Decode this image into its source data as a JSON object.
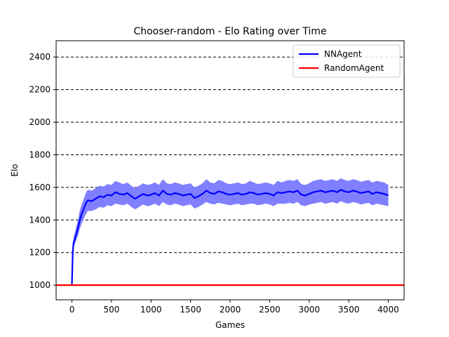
{
  "chart_data": {
    "type": "line",
    "title": "Chooser-random - Elo Rating over Time",
    "xlabel": "Games",
    "ylabel": "Elo",
    "xlim": [
      -200,
      4200
    ],
    "ylim": [
      910,
      2500
    ],
    "xticks": [
      0,
      500,
      1000,
      1500,
      2000,
      2500,
      3000,
      3500,
      4000
    ],
    "yticks": [
      1000,
      1200,
      1400,
      1600,
      1800,
      2000,
      2200,
      2400
    ],
    "grid": "horizontal dashed",
    "legend": "top-right",
    "series": [
      {
        "name": "NNAgent",
        "color": "#0000ff",
        "band_color": "#8080ff",
        "x": [
          0,
          10,
          20,
          40,
          60,
          80,
          100,
          125,
          150,
          175,
          200,
          250,
          300,
          350,
          400,
          450,
          500,
          550,
          600,
          650,
          700,
          750,
          800,
          850,
          900,
          950,
          1000,
          1050,
          1100,
          1150,
          1200,
          1250,
          1300,
          1350,
          1400,
          1450,
          1500,
          1550,
          1600,
          1650,
          1700,
          1750,
          1800,
          1850,
          1900,
          1950,
          2000,
          2050,
          2100,
          2150,
          2200,
          2250,
          2300,
          2350,
          2400,
          2450,
          2500,
          2550,
          2600,
          2650,
          2700,
          2750,
          2800,
          2850,
          2900,
          2950,
          3000,
          3050,
          3100,
          3150,
          3200,
          3250,
          3300,
          3350,
          3400,
          3450,
          3500,
          3550,
          3600,
          3650,
          3700,
          3750,
          3800,
          3850,
          3900,
          3950,
          4000
        ],
        "values": [
          1000,
          1200,
          1260,
          1290,
          1320,
          1360,
          1400,
          1440,
          1470,
          1500,
          1520,
          1515,
          1530,
          1545,
          1540,
          1555,
          1550,
          1570,
          1560,
          1555,
          1565,
          1545,
          1530,
          1545,
          1560,
          1550,
          1555,
          1565,
          1550,
          1580,
          1560,
          1555,
          1565,
          1560,
          1550,
          1555,
          1560,
          1535,
          1545,
          1560,
          1580,
          1565,
          1560,
          1575,
          1570,
          1560,
          1555,
          1560,
          1565,
          1555,
          1560,
          1570,
          1565,
          1555,
          1560,
          1565,
          1560,
          1550,
          1570,
          1565,
          1570,
          1575,
          1570,
          1580,
          1555,
          1550,
          1560,
          1570,
          1575,
          1580,
          1570,
          1575,
          1580,
          1570,
          1585,
          1575,
          1570,
          1580,
          1575,
          1565,
          1570,
          1575,
          1560,
          1570,
          1565,
          1560,
          1550
        ],
        "lower": [
          1000,
          1180,
          1230,
          1255,
          1280,
          1310,
          1345,
          1380,
          1410,
          1435,
          1455,
          1455,
          1465,
          1480,
          1475,
          1490,
          1485,
          1500,
          1495,
          1490,
          1500,
          1480,
          1465,
          1480,
          1495,
          1485,
          1490,
          1500,
          1485,
          1510,
          1495,
          1490,
          1500,
          1495,
          1485,
          1490,
          1495,
          1470,
          1480,
          1495,
          1510,
          1500,
          1495,
          1505,
          1500,
          1495,
          1490,
          1495,
          1500,
          1490,
          1495,
          1500,
          1500,
          1490,
          1495,
          1500,
          1495,
          1485,
          1500,
          1500,
          1500,
          1505,
          1500,
          1510,
          1490,
          1485,
          1495,
          1500,
          1505,
          1510,
          1500,
          1505,
          1510,
          1500,
          1515,
          1505,
          1500,
          1510,
          1505,
          1495,
          1500,
          1505,
          1490,
          1500,
          1495,
          1490,
          1485
        ],
        "upper": [
          1000,
          1230,
          1290,
          1330,
          1370,
          1410,
          1460,
          1500,
          1530,
          1565,
          1585,
          1580,
          1595,
          1610,
          1605,
          1620,
          1615,
          1640,
          1630,
          1620,
          1630,
          1610,
          1595,
          1610,
          1625,
          1615,
          1620,
          1630,
          1615,
          1650,
          1625,
          1620,
          1630,
          1625,
          1615,
          1620,
          1625,
          1600,
          1610,
          1625,
          1650,
          1630,
          1625,
          1645,
          1640,
          1625,
          1620,
          1625,
          1630,
          1620,
          1625,
          1640,
          1630,
          1620,
          1625,
          1630,
          1625,
          1615,
          1640,
          1630,
          1640,
          1645,
          1640,
          1650,
          1620,
          1615,
          1625,
          1640,
          1645,
          1650,
          1640,
          1645,
          1650,
          1640,
          1655,
          1645,
          1640,
          1650,
          1645,
          1635,
          1640,
          1645,
          1630,
          1640,
          1635,
          1630,
          1615
        ]
      },
      {
        "name": "RandomAgent",
        "color": "#ff0000",
        "x": [
          -200,
          4200
        ],
        "values": [
          1000,
          1000
        ]
      }
    ]
  }
}
